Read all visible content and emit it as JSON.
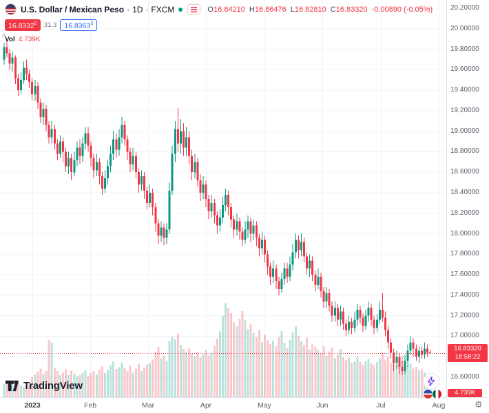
{
  "colors": {
    "up": "#089981",
    "down": "#F23645",
    "vol_up": "rgba(8,153,129,0.28)",
    "vol_down": "rgba(242,54,69,0.28)",
    "buy_blue": "#2962FF",
    "grid": "#F0F3FA",
    "axis_text": "#5A5E69",
    "badge_red": "#F23645"
  },
  "header": {
    "symbol_title": "U.S. Dollar / Mexican Peso",
    "dot": "·",
    "interval": "1D",
    "exchange": "FXCM",
    "ohlc": {
      "o_label": "O",
      "o": "16.84210",
      "h_label": "H",
      "h": "16.86476",
      "l_label": "L",
      "l": "16.82810",
      "c_label": "C",
      "c": "16.83320",
      "change": "-0.00890 (-0.05%)"
    },
    "sell": {
      "price": "16.8332",
      "sup": "0"
    },
    "spread": "31.3",
    "buy": {
      "price": "16.8363",
      "sup": "3"
    },
    "volume": {
      "label": "Vol",
      "value": "4.739K"
    }
  },
  "price_axis": {
    "last_price": "16.83320",
    "countdown": "18:58:22",
    "volume_badge": "4.739K"
  },
  "footer": {
    "logo": "TradingView"
  },
  "chart_data": {
    "type": "candlestick",
    "symbol": "U.S. Dollar / Mexican Peso",
    "interval": "1D",
    "exchange": "FXCM",
    "ylim": [
      16.6,
      20.2
    ],
    "y_tick_step": 0.2,
    "grid": true,
    "y_ticks": [
      "20.20000",
      "20.00000",
      "19.80000",
      "19.60000",
      "19.40000",
      "19.20000",
      "19.00000",
      "18.80000",
      "18.60000",
      "18.40000",
      "18.20000",
      "18.00000",
      "17.80000",
      "17.60000",
      "17.40000",
      "17.20000",
      "17.00000",
      "16.80000",
      "16.60000"
    ],
    "x_labels": [
      "2023",
      "Feb",
      "Mar",
      "Apr",
      "May",
      "Jun",
      "Jul",
      "Aug"
    ],
    "last_bar": {
      "open": 16.8421,
      "high": 16.86476,
      "low": 16.8281,
      "close": 16.8332,
      "change": -0.0089,
      "change_pct": -0.05,
      "volume_k": 4.739,
      "countdown": "18:58:22"
    },
    "columns": [
      "open",
      "high",
      "low",
      "close",
      "volume_k"
    ],
    "candles": [
      [
        19.7,
        19.86,
        19.65,
        19.82,
        6.2
      ],
      [
        19.82,
        19.89,
        19.72,
        19.76,
        7.8
      ],
      [
        19.76,
        19.8,
        19.6,
        19.66,
        5.9
      ],
      [
        19.66,
        19.78,
        19.58,
        19.72,
        6.4
      ],
      [
        19.72,
        19.74,
        19.46,
        19.52,
        8.1
      ],
      [
        19.52,
        19.56,
        19.34,
        19.4,
        7.2
      ],
      [
        19.4,
        19.58,
        19.36,
        19.5,
        5.5
      ],
      [
        19.5,
        19.68,
        19.46,
        19.62,
        4.8
      ],
      [
        19.62,
        19.7,
        19.5,
        19.56,
        5.2
      ],
      [
        19.56,
        19.6,
        19.42,
        19.48,
        6.0
      ],
      [
        19.48,
        19.52,
        19.3,
        19.36,
        9.5
      ],
      [
        19.36,
        19.5,
        19.3,
        19.44,
        10.8
      ],
      [
        19.44,
        19.48,
        19.22,
        19.28,
        12.2
      ],
      [
        19.28,
        19.32,
        19.08,
        19.14,
        13.6
      ],
      [
        19.14,
        19.28,
        19.06,
        19.22,
        11.0
      ],
      [
        19.22,
        19.26,
        19.0,
        19.06,
        12.5
      ],
      [
        19.06,
        19.1,
        18.88,
        18.94,
        27.2
      ],
      [
        18.94,
        19.1,
        18.88,
        19.02,
        26.0
      ],
      [
        19.02,
        19.06,
        18.82,
        18.88,
        13.8
      ],
      [
        18.88,
        18.92,
        18.72,
        18.78,
        12.4
      ],
      [
        18.78,
        18.96,
        18.74,
        18.9,
        10.6
      ],
      [
        18.9,
        18.94,
        18.7,
        18.8,
        11.8
      ],
      [
        18.8,
        18.84,
        18.6,
        18.66,
        13.2
      ],
      [
        18.66,
        18.8,
        18.58,
        18.74,
        10.4
      ],
      [
        18.74,
        18.78,
        18.52,
        18.6,
        12.6
      ],
      [
        18.6,
        18.8,
        18.56,
        18.72,
        11.2
      ],
      [
        18.72,
        18.9,
        18.66,
        18.84,
        9.8
      ],
      [
        18.84,
        18.92,
        18.68,
        18.76,
        10.5
      ],
      [
        18.76,
        18.94,
        18.7,
        18.88,
        11.6
      ],
      [
        18.88,
        19.04,
        18.82,
        18.98,
        12.8
      ],
      [
        18.98,
        19.04,
        18.8,
        18.86,
        10.2
      ],
      [
        18.86,
        18.9,
        18.66,
        18.74,
        11.4
      ],
      [
        18.74,
        18.78,
        18.54,
        18.62,
        12.5
      ],
      [
        18.62,
        18.78,
        18.56,
        18.7,
        10.8
      ],
      [
        18.7,
        18.74,
        18.48,
        18.56,
        13.2
      ],
      [
        18.56,
        18.6,
        18.38,
        18.44,
        14.6
      ],
      [
        18.44,
        18.62,
        18.4,
        18.54,
        11.4
      ],
      [
        18.54,
        18.72,
        18.48,
        18.66,
        12.8
      ],
      [
        18.66,
        18.86,
        18.6,
        18.78,
        15.2
      ],
      [
        18.78,
        19.0,
        18.72,
        18.92,
        16.8
      ],
      [
        18.92,
        18.98,
        18.74,
        18.82,
        13.4
      ],
      [
        18.82,
        19.02,
        18.76,
        18.94,
        14.2
      ],
      [
        18.94,
        19.14,
        18.88,
        19.06,
        16.5
      ],
      [
        19.06,
        19.1,
        18.86,
        18.92,
        13.8
      ],
      [
        18.92,
        18.96,
        18.72,
        18.8,
        12.2
      ],
      [
        18.8,
        18.84,
        18.6,
        18.68,
        14.8
      ],
      [
        18.68,
        18.84,
        18.62,
        18.76,
        11.6
      ],
      [
        18.76,
        18.8,
        18.54,
        18.6,
        13.5
      ],
      [
        18.6,
        18.64,
        18.4,
        18.48,
        15.8
      ],
      [
        18.48,
        18.62,
        18.42,
        18.56,
        12.4
      ],
      [
        18.56,
        18.6,
        18.34,
        18.42,
        14.0
      ],
      [
        18.42,
        18.46,
        18.24,
        18.3,
        15.5
      ],
      [
        18.3,
        18.48,
        18.26,
        18.4,
        16.2
      ],
      [
        18.4,
        18.44,
        18.18,
        18.26,
        17.8
      ],
      [
        18.26,
        18.3,
        18.02,
        18.1,
        21.5
      ],
      [
        18.1,
        18.14,
        17.9,
        17.98,
        23.8
      ],
      [
        17.98,
        18.12,
        17.92,
        18.06,
        18.4
      ],
      [
        18.06,
        18.1,
        17.89,
        17.96,
        19.6
      ],
      [
        17.96,
        18.1,
        17.9,
        18.04,
        17.2
      ],
      [
        18.04,
        18.5,
        18.0,
        18.42,
        26.5
      ],
      [
        18.42,
        18.86,
        18.38,
        18.78,
        28.8
      ],
      [
        18.78,
        19.1,
        18.7,
        19.02,
        27.4
      ],
      [
        19.02,
        19.23,
        18.8,
        18.88,
        30.2
      ],
      [
        18.88,
        19.12,
        18.78,
        19.0,
        24.6
      ],
      [
        19.0,
        19.08,
        18.76,
        18.84,
        22.8
      ],
      [
        18.84,
        19.04,
        18.76,
        18.94,
        21.4
      ],
      [
        18.94,
        19.0,
        18.68,
        18.76,
        23.2
      ],
      [
        18.76,
        18.82,
        18.52,
        18.6,
        20.8
      ],
      [
        18.6,
        18.78,
        18.54,
        18.7,
        19.4
      ],
      [
        18.7,
        18.74,
        18.46,
        18.52,
        21.6
      ],
      [
        18.52,
        18.58,
        18.32,
        18.4,
        18.8
      ],
      [
        18.4,
        18.56,
        18.34,
        18.48,
        20.2
      ],
      [
        18.48,
        18.52,
        18.26,
        18.34,
        22.4
      ],
      [
        18.34,
        18.38,
        18.14,
        18.22,
        19.8
      ],
      [
        18.22,
        18.38,
        18.16,
        18.3,
        21.0
      ],
      [
        18.3,
        18.34,
        18.1,
        18.18,
        24.5
      ],
      [
        18.18,
        18.22,
        18.0,
        18.08,
        27.8
      ],
      [
        18.08,
        18.24,
        18.02,
        18.16,
        31.2
      ],
      [
        18.16,
        18.36,
        18.1,
        18.28,
        38.5
      ],
      [
        18.28,
        18.44,
        18.22,
        18.38,
        44.6
      ],
      [
        18.38,
        18.42,
        18.18,
        18.26,
        42.2
      ],
      [
        18.26,
        18.3,
        18.06,
        18.14,
        39.8
      ],
      [
        18.14,
        18.18,
        17.96,
        18.04,
        35.4
      ],
      [
        18.04,
        18.2,
        17.98,
        18.12,
        33.6
      ],
      [
        18.12,
        18.16,
        17.94,
        18.02,
        37.2
      ],
      [
        18.02,
        18.06,
        17.88,
        17.94,
        40.8
      ],
      [
        17.94,
        18.12,
        17.9,
        18.04,
        36.4
      ],
      [
        18.04,
        18.18,
        17.96,
        18.12,
        32.2
      ],
      [
        18.12,
        18.16,
        17.92,
        18.0,
        34.8
      ],
      [
        18.0,
        18.14,
        17.94,
        18.08,
        30.6
      ],
      [
        18.08,
        18.12,
        17.88,
        17.96,
        28.4
      ],
      [
        17.96,
        18.0,
        17.78,
        17.86,
        31.8
      ],
      [
        17.86,
        18.02,
        17.8,
        17.94,
        26.2
      ],
      [
        17.94,
        17.98,
        17.72,
        17.8,
        29.6
      ],
      [
        17.8,
        17.84,
        17.6,
        17.68,
        27.0
      ],
      [
        17.68,
        17.72,
        17.5,
        17.58,
        25.4
      ],
      [
        17.58,
        17.74,
        17.52,
        17.66,
        26.8
      ],
      [
        17.66,
        17.7,
        17.46,
        17.54,
        24.2
      ],
      [
        17.54,
        17.58,
        17.4,
        17.46,
        28.6
      ],
      [
        17.46,
        17.62,
        17.42,
        17.56,
        31.4
      ],
      [
        17.56,
        17.72,
        17.5,
        17.66,
        25.8
      ],
      [
        17.66,
        17.72,
        17.52,
        17.58,
        23.4
      ],
      [
        17.58,
        17.78,
        17.54,
        17.7,
        27.2
      ],
      [
        17.7,
        17.9,
        17.64,
        17.82,
        30.8
      ],
      [
        17.82,
        18.0,
        17.76,
        17.94,
        33.5
      ],
      [
        17.94,
        17.98,
        17.76,
        17.84,
        29.2
      ],
      [
        17.84,
        18.0,
        17.78,
        17.92,
        26.4
      ],
      [
        17.92,
        17.96,
        17.72,
        17.78,
        24.8
      ],
      [
        17.78,
        17.82,
        17.6,
        17.66,
        28.2
      ],
      [
        17.66,
        17.8,
        17.58,
        17.74,
        22.6
      ],
      [
        17.74,
        17.78,
        17.54,
        17.6,
        25.0
      ],
      [
        17.6,
        17.64,
        17.44,
        17.5,
        23.8
      ],
      [
        17.5,
        17.66,
        17.46,
        17.58,
        22.4
      ],
      [
        17.58,
        17.62,
        17.38,
        17.44,
        20.8
      ],
      [
        17.44,
        17.48,
        17.28,
        17.34,
        24.2
      ],
      [
        17.34,
        17.48,
        17.28,
        17.42,
        19.6
      ],
      [
        17.42,
        17.46,
        17.24,
        17.3,
        21.8
      ],
      [
        17.3,
        17.34,
        17.14,
        17.2,
        23.5
      ],
      [
        17.2,
        17.34,
        17.14,
        17.28,
        18.4
      ],
      [
        17.28,
        17.32,
        17.1,
        17.16,
        20.2
      ],
      [
        17.16,
        17.3,
        17.1,
        17.24,
        22.8
      ],
      [
        17.24,
        17.28,
        17.06,
        17.12,
        19.0
      ],
      [
        17.12,
        17.16,
        17.0,
        17.06,
        17.6
      ],
      [
        17.06,
        17.2,
        17.02,
        17.14,
        18.8
      ],
      [
        17.14,
        17.18,
        17.02,
        17.08,
        16.4
      ],
      [
        17.08,
        17.24,
        17.04,
        17.16,
        17.2
      ],
      [
        17.16,
        17.32,
        17.1,
        17.26,
        19.5
      ],
      [
        17.26,
        17.3,
        17.12,
        17.18,
        16.8
      ],
      [
        17.18,
        17.22,
        17.04,
        17.1,
        15.4
      ],
      [
        17.1,
        17.26,
        17.06,
        17.2,
        17.0
      ],
      [
        17.2,
        17.34,
        17.14,
        17.28,
        18.2
      ],
      [
        17.28,
        17.32,
        17.1,
        17.16,
        16.0
      ],
      [
        17.16,
        17.2,
        17.02,
        17.08,
        15.2
      ],
      [
        17.08,
        17.22,
        17.04,
        17.16,
        16.6
      ],
      [
        17.16,
        17.34,
        17.12,
        17.26,
        18.4
      ],
      [
        17.26,
        17.42,
        17.14,
        17.18,
        21.2
      ],
      [
        17.18,
        17.24,
        17.0,
        17.06,
        17.8
      ],
      [
        17.06,
        17.1,
        16.88,
        16.94,
        19.4
      ],
      [
        16.94,
        16.98,
        16.78,
        16.84,
        16.2
      ],
      [
        16.84,
        16.88,
        16.66,
        16.74,
        18.8
      ],
      [
        16.74,
        16.86,
        16.68,
        16.8,
        15.6
      ],
      [
        16.8,
        16.84,
        16.63,
        16.7,
        17.4
      ],
      [
        16.7,
        16.76,
        16.62,
        16.66,
        19.8
      ],
      [
        16.66,
        16.82,
        16.63,
        16.76,
        16.4
      ],
      [
        16.76,
        16.92,
        16.7,
        16.86,
        14.8
      ],
      [
        16.86,
        17.0,
        16.82,
        16.94,
        15.8
      ],
      [
        16.94,
        16.98,
        16.8,
        16.88,
        13.6
      ],
      [
        16.88,
        16.92,
        16.76,
        16.8,
        14.4
      ],
      [
        16.8,
        16.9,
        16.74,
        16.86,
        12.8
      ],
      [
        16.86,
        16.9,
        16.78,
        16.82,
        13.2
      ],
      [
        16.82,
        16.94,
        16.78,
        16.88,
        11.6
      ],
      [
        16.88,
        16.92,
        16.8,
        16.84,
        10.4
      ],
      [
        16.8421,
        16.86476,
        16.8281,
        16.8332,
        4.739
      ]
    ]
  }
}
